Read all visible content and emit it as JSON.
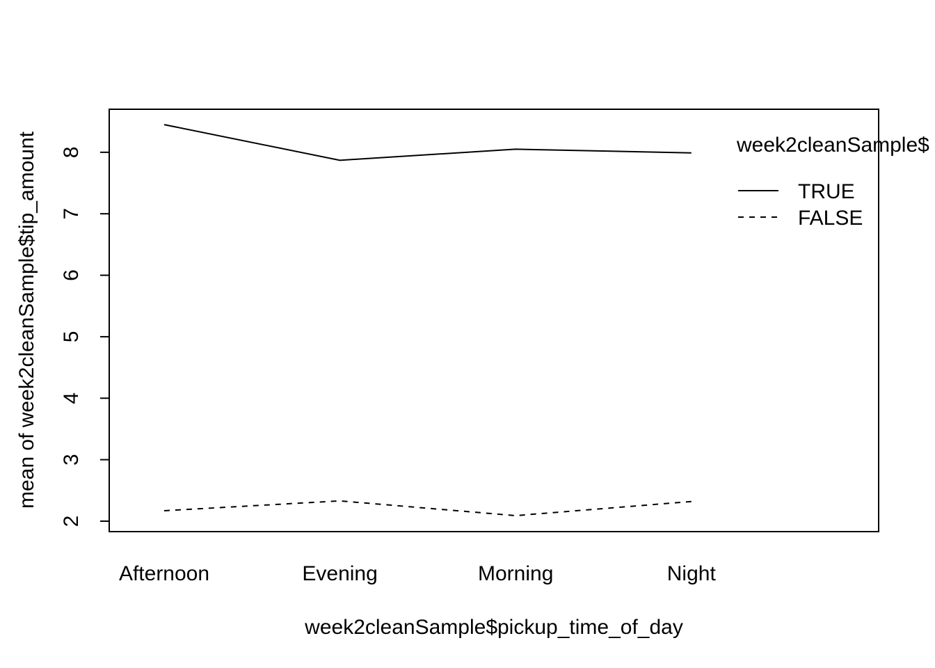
{
  "chart_data": {
    "type": "line",
    "title": "",
    "xlabel": "week2cleanSample$pickup_time_of_day",
    "ylabel": "mean of  week2cleanSample$tip_amount",
    "categories": [
      "Afternoon",
      "Evening",
      "Morning",
      "Night"
    ],
    "yticks": [
      "2",
      "3",
      "4",
      "5",
      "6",
      "7",
      "8"
    ],
    "ylim": [
      1.83,
      8.7
    ],
    "grid": false,
    "legend": {
      "placement": "top-right",
      "title": "week2cleanSample$",
      "items": [
        "TRUE",
        "FALSE"
      ]
    },
    "series": [
      {
        "name": "TRUE",
        "line_style": "solid",
        "color": "#000000",
        "values": [
          8.45,
          7.87,
          8.05,
          7.99
        ]
      },
      {
        "name": "FALSE",
        "line_style": "dashed",
        "color": "#000000",
        "values": [
          2.17,
          2.33,
          2.09,
          2.32
        ]
      }
    ]
  }
}
